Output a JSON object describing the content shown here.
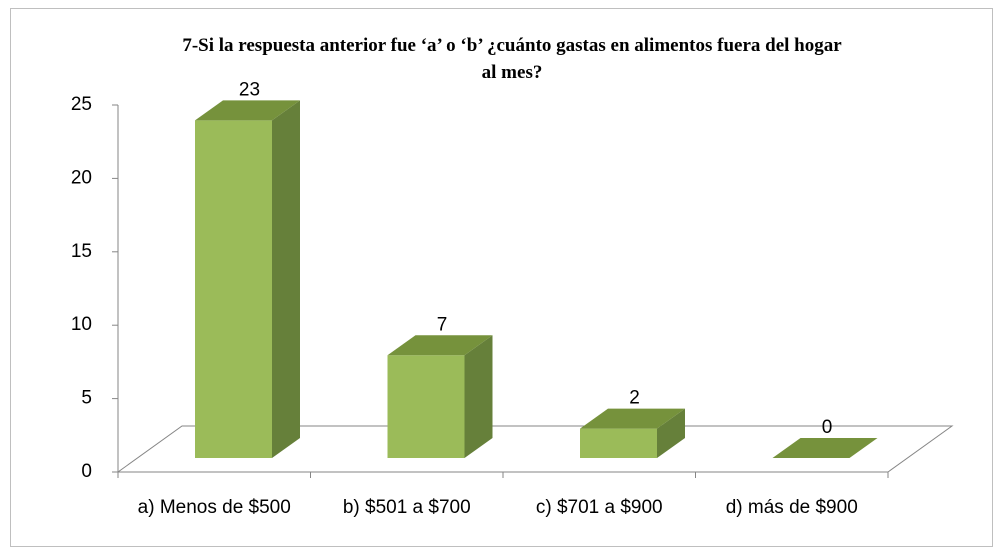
{
  "chart_data": {
    "type": "bar3d",
    "title": "7-Si la respuesta anterior fue ‘a’ o ‘b’ ¿cuánto gastas en alimentos fuera del hogar al mes?",
    "categories": [
      "a) Menos de $500",
      "b) $501 a $700",
      "c) $701 a $900",
      "d) más de $900"
    ],
    "values": [
      23,
      7,
      2,
      0
    ],
    "color": "#9bbb59",
    "ylim": [
      0,
      25
    ],
    "yticks": [
      0,
      5,
      10,
      15,
      20,
      25
    ]
  }
}
